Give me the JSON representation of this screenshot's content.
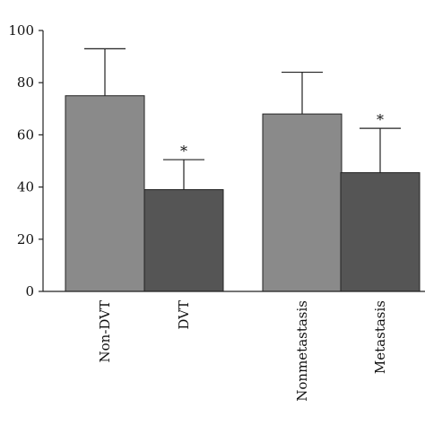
{
  "chart_data": {
    "type": "bar",
    "title": "",
    "xlabel": "",
    "ylabel": "",
    "ylim": [
      0,
      100
    ],
    "yticks": [
      0,
      20,
      40,
      60,
      80,
      100
    ],
    "grid": false,
    "categories": [
      "Non-DVT",
      "DVT",
      "Nonmetastasis",
      "Metastasis"
    ],
    "values": [
      75,
      39,
      68,
      45.5
    ],
    "error_upper": [
      93,
      50.5,
      84,
      62.5
    ],
    "significance": [
      "",
      "*",
      "",
      "*"
    ],
    "colors": [
      "#8a8a8a",
      "#555555",
      "#8a8a8a",
      "#555555"
    ]
  }
}
